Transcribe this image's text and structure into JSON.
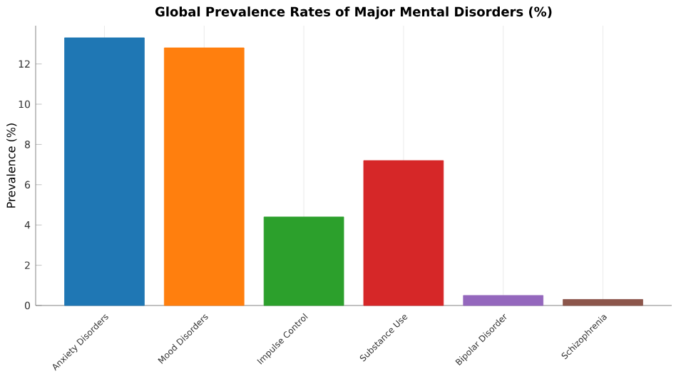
{
  "chart_data": {
    "type": "bar",
    "title": "Global Prevalence Rates of Major Mental Disorders (%)",
    "ylabel": "Prevalence (%)",
    "categories": [
      "Anxiety Disorders",
      "Mood Disorders",
      "Impulse Control",
      "Substance Use",
      "Bipolar Disorder",
      "Schizophrenia"
    ],
    "values": [
      13.3,
      12.8,
      4.4,
      7.2,
      0.5,
      0.3
    ],
    "colors": [
      "#1f77b4",
      "#ff7f0e",
      "#2ca02c",
      "#d62728",
      "#9467bd",
      "#8c564b"
    ],
    "ylim": [
      0,
      13.9
    ],
    "yticks": [
      0,
      2,
      4,
      6,
      8,
      10,
      12
    ],
    "grid": "x"
  }
}
